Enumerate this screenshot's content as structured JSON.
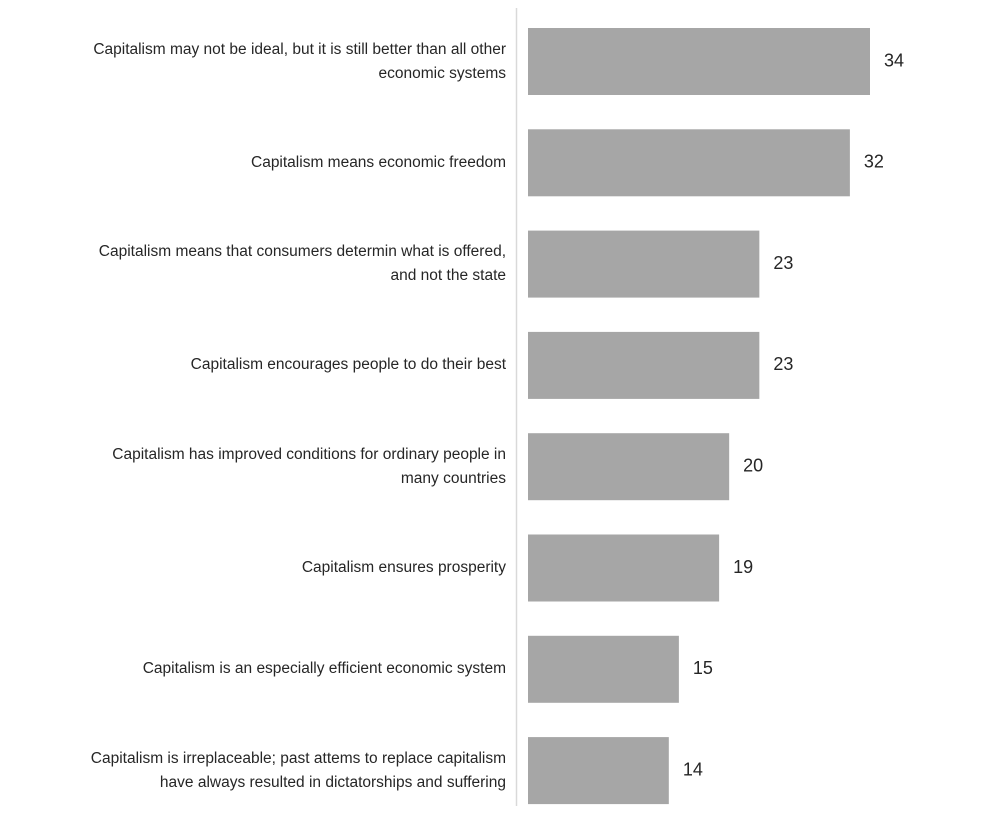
{
  "chart_data": {
    "type": "bar",
    "orientation": "horizontal",
    "categories": [
      "Capitalism may not be ideal, but it is still better than all other economic systems",
      "Capitalism means economic freedom",
      "Capitalism means that consumers determin what is offered, and not the state",
      "Capitalism encourages people to do their best",
      "Capitalism has improved conditions for ordinary people in many countries",
      "Capitalism ensures prosperity",
      "Capitalism is an especially efficient economic system",
      "Capitalism is irreplaceable; past attems to replace capitalism have always resulted in dictatorships and suffering"
    ],
    "values": [
      34,
      32,
      23,
      23,
      20,
      19,
      15,
      14
    ],
    "color": "#a6a6a6"
  }
}
